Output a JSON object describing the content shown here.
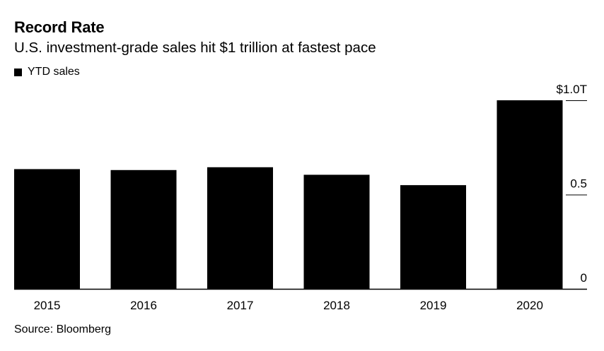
{
  "header": {
    "title": "Record Rate",
    "subtitle": "U.S. investment-grade sales hit $1 trillion at fastest pace"
  },
  "legend": {
    "label": "YTD sales",
    "color": "#000000"
  },
  "footer": {
    "source": "Source: Bloomberg"
  },
  "chart_data": {
    "type": "bar",
    "title": "Record Rate",
    "subtitle": "U.S. investment-grade sales hit $1 trillion at fastest pace",
    "categories": [
      "2015",
      "2016",
      "2017",
      "2018",
      "2019",
      "2020"
    ],
    "series": [
      {
        "name": "YTD sales",
        "values": [
          0.635,
          0.63,
          0.645,
          0.605,
          0.55,
          1.0
        ],
        "color": "#000000"
      }
    ],
    "xlabel": "",
    "ylabel": "",
    "ylim": [
      0,
      1.0
    ],
    "yticks": [
      {
        "value": 0,
        "label": "0"
      },
      {
        "value": 0.5,
        "label": "0.5"
      },
      {
        "value": 1.0,
        "label": "$1.0T"
      }
    ],
    "grid": false,
    "legend_position": "top-left"
  }
}
